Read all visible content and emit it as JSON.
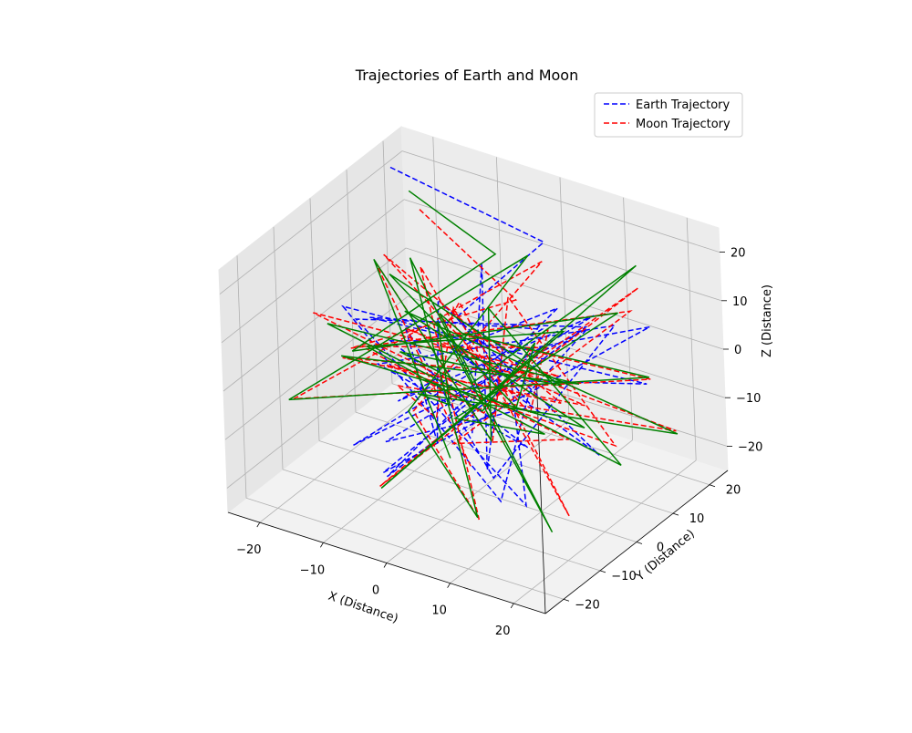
{
  "chart_data": {
    "type": "line3d",
    "title": "Trajectories of Earth and Moon",
    "xlabel": "X (Distance)",
    "ylabel": "Y (Distance)",
    "zlabel": "Z (Distance)",
    "xlim": [
      -25,
      25
    ],
    "ylim": [
      -25,
      25
    ],
    "zlim": [
      -25,
      25
    ],
    "xticks": [
      "−20",
      "−10",
      "0",
      "10",
      "20"
    ],
    "yticks": [
      "−20",
      "−10",
      "0",
      "10",
      "20"
    ],
    "zticks": [
      "−20",
      "−10",
      "0",
      "10",
      "20"
    ],
    "grid": true,
    "legend_position": "top-right",
    "series": [
      {
        "name": "Earth Trajectory",
        "color": "#0000ff",
        "linestyle": "dashed",
        "points": [
          [
            -24,
            20,
            20
          ],
          [
            6,
            10,
            23
          ],
          [
            -3,
            1,
            9
          ],
          [
            14,
            -8,
            3
          ],
          [
            -6,
            -14,
            -9
          ],
          [
            10,
            16,
            6
          ],
          [
            -14,
            3,
            -14
          ],
          [
            3,
            -6,
            7
          ],
          [
            20,
            14,
            9
          ],
          [
            -9,
            -10,
            -19
          ],
          [
            1,
            8,
            -4
          ],
          [
            16,
            -14,
            -13
          ],
          [
            -19,
            1,
            2
          ],
          [
            5,
            22,
            -2
          ],
          [
            -3,
            -19,
            -12
          ],
          [
            12,
            3,
            16
          ],
          [
            -11,
            13,
            -8
          ],
          [
            22,
            -4,
            -6
          ],
          [
            -4,
            -2,
            14
          ],
          [
            7,
            -22,
            1
          ],
          [
            -16,
            9,
            -3
          ],
          [
            2,
            1,
            -22
          ],
          [
            18,
            8,
            12
          ],
          [
            -8,
            -12,
            5
          ],
          [
            10,
            -3,
            -10
          ],
          [
            -22,
            15,
            -12
          ],
          [
            6,
            -16,
            18
          ],
          [
            -1,
            6,
            -6
          ],
          [
            15,
            21,
            -9
          ],
          [
            -12,
            -7,
            10
          ],
          [
            4,
            12,
            3
          ],
          [
            -7,
            -21,
            -6
          ],
          [
            19,
            -1,
            17
          ],
          [
            -2,
            18,
            -16
          ],
          [
            9,
            -9,
            -18
          ],
          [
            -18,
            -4,
            8
          ],
          [
            3,
            3,
            4
          ],
          [
            13,
            -19,
            -4
          ],
          [
            -10,
            20,
            6
          ],
          [
            0,
            -1,
            -13
          ]
        ]
      },
      {
        "name": "Moon Trajectory",
        "color": "#ff0000",
        "linestyle": "dashed",
        "points": [
          [
            -19,
            19,
            14
          ],
          [
            9,
            -3,
            20
          ],
          [
            -14,
            -9,
            4
          ],
          [
            17,
            14,
            11
          ],
          [
            -6,
            4,
            -20
          ],
          [
            22,
            -12,
            2
          ],
          [
            -24,
            -2,
            3
          ],
          [
            4,
            16,
            -9
          ],
          [
            -10,
            -18,
            9
          ],
          [
            14,
            6,
            -5
          ],
          [
            -2,
            -14,
            16
          ],
          [
            20,
            20,
            -16
          ],
          [
            -17,
            8,
            -15
          ],
          [
            7,
            -22,
            6
          ],
          [
            -4,
            2,
            10
          ],
          [
            18,
            -6,
            -19
          ],
          [
            -12,
            17,
            -1
          ],
          [
            1,
            -9,
            14
          ],
          [
            24,
            7,
            4
          ],
          [
            -21,
            -13,
            -7
          ],
          [
            5,
            11,
            18
          ],
          [
            -8,
            -3,
            -10
          ],
          [
            12,
            -20,
            -14
          ],
          [
            -15,
            12,
            8
          ],
          [
            3,
            0,
            -3
          ],
          [
            16,
            18,
            13
          ],
          [
            -6,
            -16,
            -17
          ],
          [
            10,
            3,
            7
          ],
          [
            -23,
            9,
            -10
          ],
          [
            8,
            -11,
            1
          ],
          [
            -1,
            22,
            -5
          ],
          [
            19,
            -17,
            9
          ],
          [
            -13,
            -1,
            19
          ],
          [
            6,
            13,
            -12
          ],
          [
            -9,
            -8,
            2
          ],
          [
            21,
            2,
            -8
          ],
          [
            -3,
            15,
            5
          ],
          [
            11,
            -14,
            -2
          ],
          [
            -18,
            5,
            12
          ],
          [
            2,
            -5,
            -16
          ]
        ]
      },
      {
        "name": "",
        "color": "#008000",
        "linestyle": "solid",
        "points": [
          [
            -20,
            18,
            18
          ],
          [
            3,
            2,
            24
          ],
          [
            -12,
            -12,
            6
          ],
          [
            18,
            9,
            14
          ],
          [
            -8,
            8,
            -18
          ],
          [
            20,
            -15,
            4
          ],
          [
            -23,
            0,
            0
          ],
          [
            6,
            18,
            -11
          ],
          [
            -9,
            -20,
            11
          ],
          [
            15,
            4,
            -8
          ],
          [
            -4,
            -11,
            17
          ],
          [
            22,
            17,
            -14
          ],
          [
            -15,
            10,
            -17
          ],
          [
            8,
            -20,
            8
          ],
          [
            -6,
            1,
            7
          ],
          [
            17,
            -9,
            -21
          ],
          [
            -14,
            15,
            -3
          ],
          [
            2,
            -6,
            12
          ],
          [
            25,
            5,
            6
          ],
          [
            -20,
            -16,
            -5
          ],
          [
            4,
            9,
            20
          ],
          [
            -10,
            -1,
            -12
          ],
          [
            13,
            -22,
            -12
          ],
          [
            -16,
            11,
            10
          ],
          [
            1,
            -2,
            -1
          ],
          [
            14,
            21,
            15
          ],
          [
            -7,
            -14,
            -19
          ],
          [
            11,
            6,
            9
          ],
          [
            -21,
            7,
            -8
          ],
          [
            9,
            -13,
            3
          ],
          [
            -2,
            20,
            -7
          ],
          [
            18,
            -19,
            11
          ],
          [
            -11,
            -3,
            17
          ],
          [
            5,
            15,
            -10
          ],
          [
            -8,
            -6,
            4
          ],
          [
            23,
            0,
            -10
          ],
          [
            -5,
            13,
            3
          ],
          [
            12,
            -16,
            0
          ],
          [
            -17,
            3,
            14
          ],
          [
            0,
            -7,
            -14
          ]
        ]
      }
    ]
  }
}
